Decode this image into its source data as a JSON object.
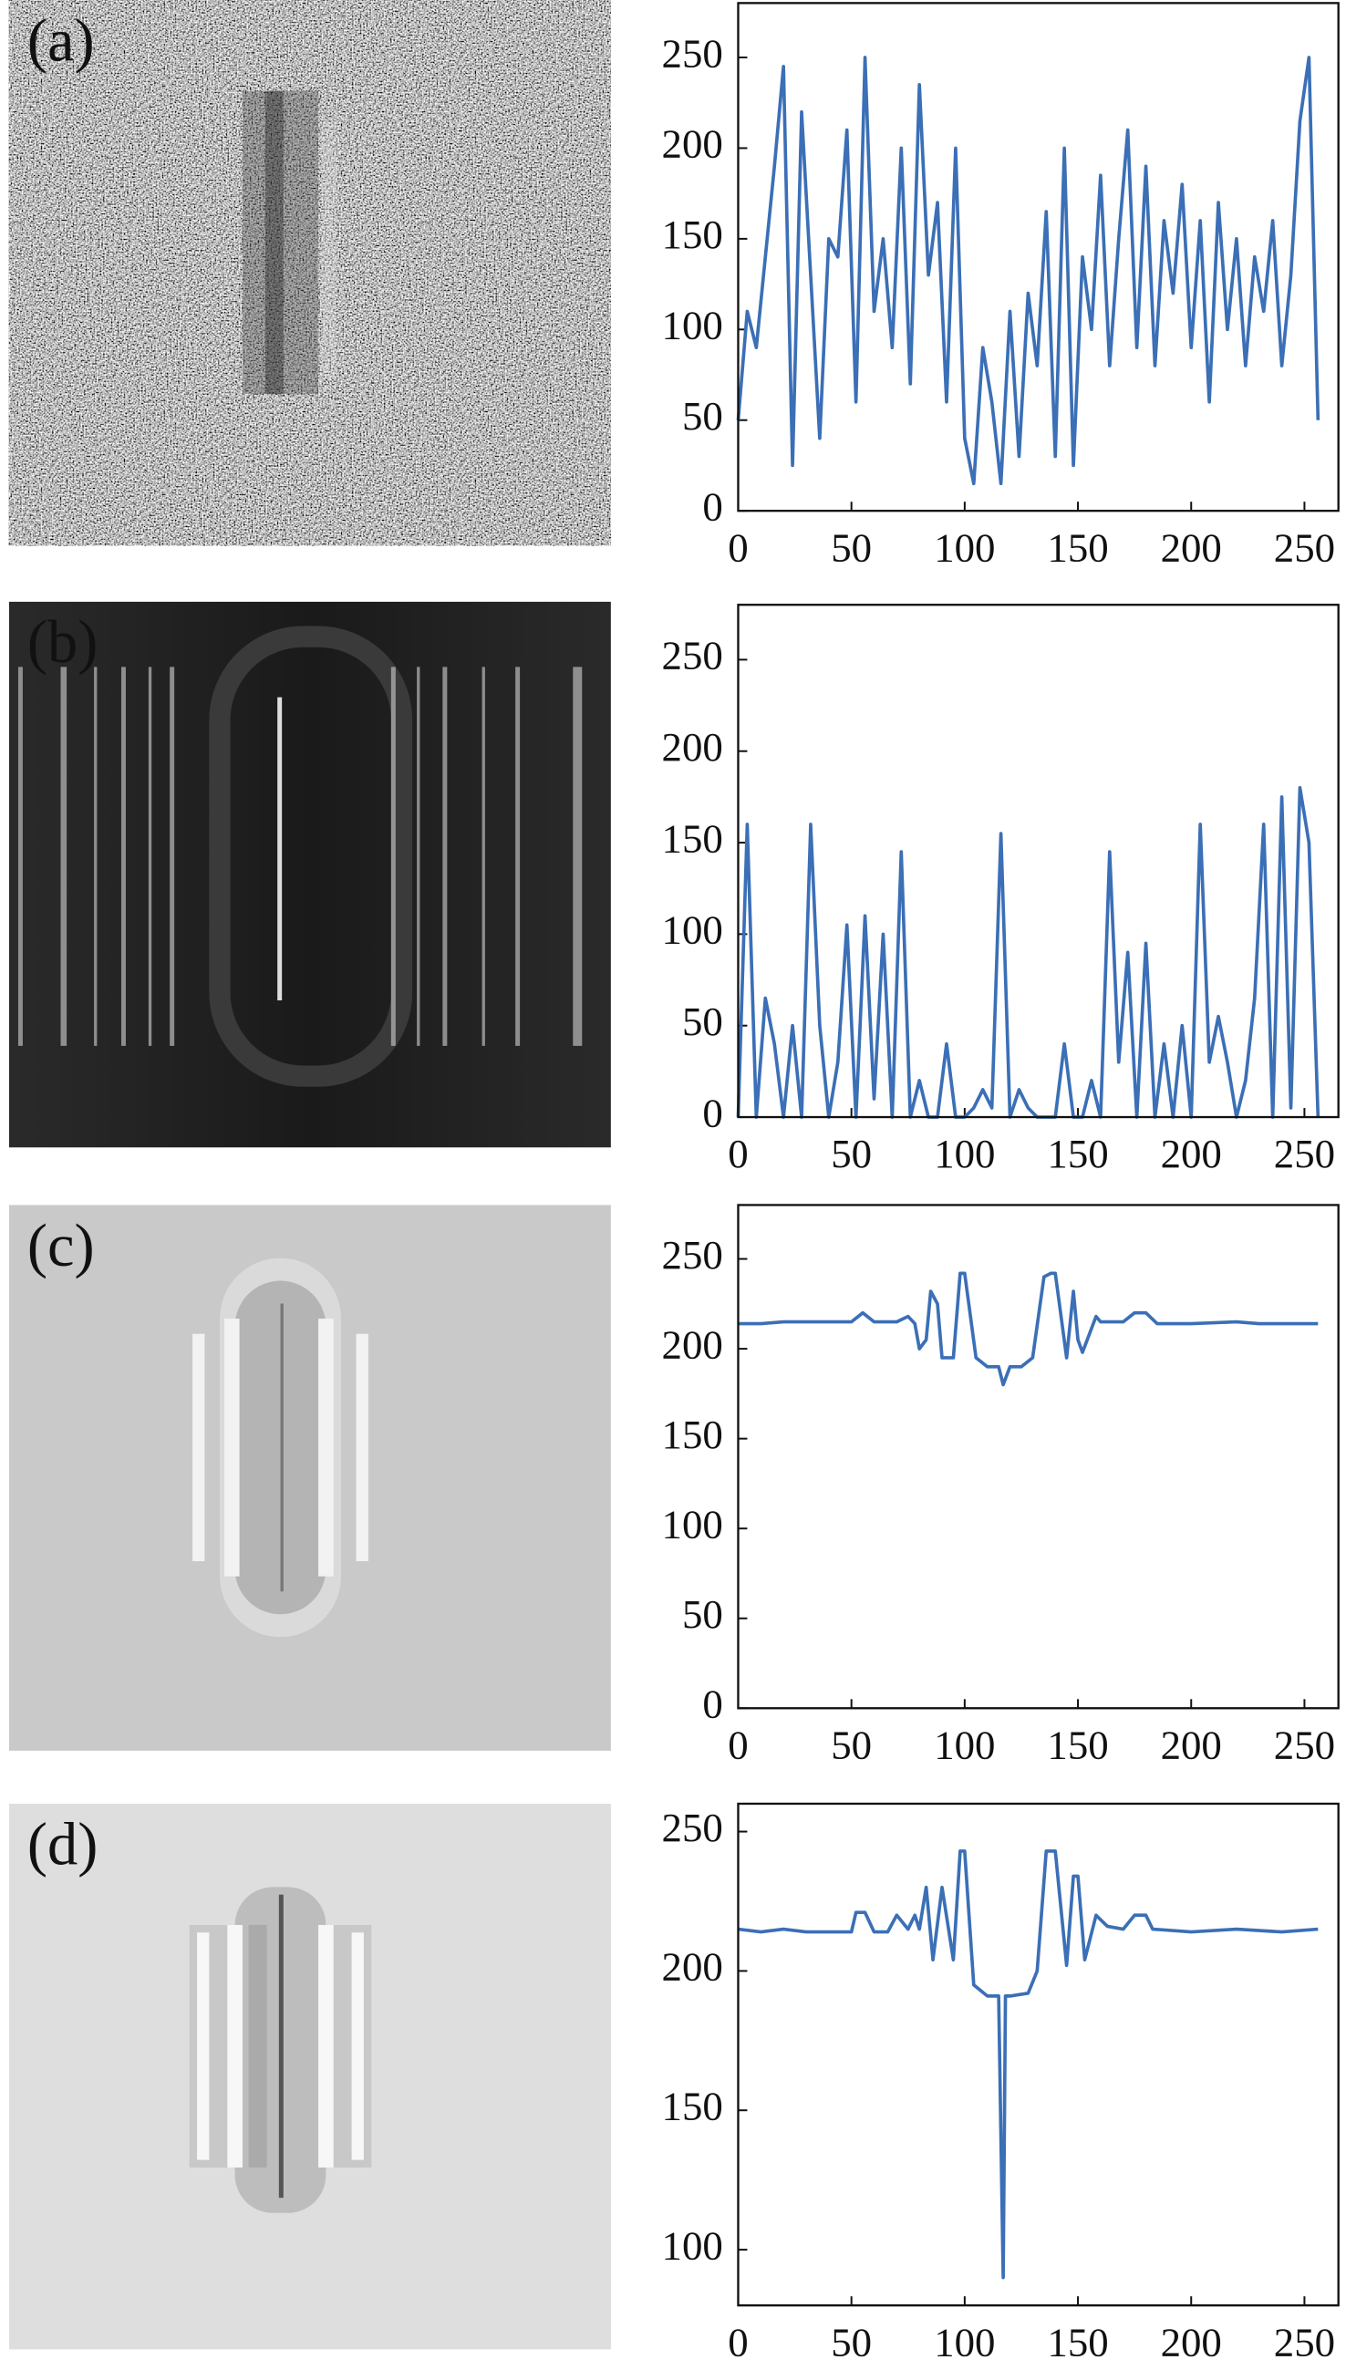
{
  "chart_data": [
    {
      "type": "line",
      "label": "(a)",
      "color": "#3b6fb6",
      "x": [
        0,
        4,
        8,
        12,
        16,
        20,
        24,
        28,
        32,
        36,
        40,
        44,
        48,
        52,
        56,
        60,
        64,
        68,
        72,
        76,
        80,
        84,
        88,
        92,
        96,
        100,
        104,
        108,
        112,
        116,
        120,
        124,
        128,
        132,
        136,
        140,
        144,
        148,
        152,
        156,
        160,
        164,
        168,
        172,
        176,
        180,
        184,
        188,
        192,
        196,
        200,
        204,
        208,
        212,
        216,
        220,
        224,
        228,
        232,
        236,
        240,
        244,
        248,
        252,
        256
      ],
      "values": [
        50,
        110,
        90,
        140,
        190,
        245,
        25,
        220,
        130,
        40,
        150,
        140,
        210,
        60,
        250,
        110,
        150,
        90,
        200,
        70,
        235,
        130,
        170,
        60,
        200,
        40,
        15,
        90,
        60,
        15,
        110,
        30,
        120,
        80,
        165,
        30,
        200,
        25,
        140,
        100,
        185,
        80,
        150,
        210,
        90,
        190,
        80,
        160,
        120,
        180,
        90,
        160,
        60,
        170,
        100,
        150,
        80,
        140,
        110,
        160,
        80,
        130,
        215,
        250,
        50
      ],
      "xlim": [
        0,
        265
      ],
      "xticks": [
        0,
        50,
        100,
        150,
        200,
        250
      ],
      "ylim": [
        0,
        280
      ],
      "yticks": [
        0,
        50,
        100,
        150,
        200,
        250
      ]
    },
    {
      "type": "line",
      "label": "(b)",
      "color": "#3b6fb6",
      "x": [
        0,
        4,
        8,
        12,
        16,
        20,
        24,
        28,
        32,
        36,
        40,
        44,
        48,
        52,
        56,
        60,
        64,
        68,
        72,
        76,
        80,
        84,
        88,
        92,
        96,
        100,
        104,
        108,
        112,
        116,
        120,
        124,
        128,
        132,
        136,
        140,
        144,
        148,
        152,
        156,
        160,
        164,
        168,
        172,
        176,
        180,
        184,
        188,
        192,
        196,
        200,
        204,
        208,
        212,
        216,
        220,
        224,
        228,
        232,
        236,
        240,
        244,
        248,
        252,
        256
      ],
      "values": [
        0,
        160,
        0,
        65,
        40,
        0,
        50,
        0,
        160,
        50,
        0,
        30,
        105,
        0,
        110,
        10,
        100,
        0,
        145,
        0,
        20,
        0,
        0,
        40,
        0,
        0,
        5,
        15,
        5,
        155,
        0,
        15,
        5,
        0,
        0,
        0,
        40,
        0,
        0,
        20,
        0,
        145,
        30,
        90,
        0,
        95,
        0,
        40,
        0,
        50,
        0,
        160,
        30,
        55,
        30,
        0,
        20,
        65,
        160,
        0,
        175,
        5,
        180,
        150,
        0
      ],
      "xlim": [
        0,
        265
      ],
      "xticks": [
        0,
        50,
        100,
        150,
        200,
        250
      ],
      "ylim": [
        0,
        280
      ],
      "yticks": [
        0,
        50,
        100,
        150,
        200,
        250
      ]
    },
    {
      "type": "line",
      "label": "(c)",
      "color": "#3b6fb6",
      "x": [
        0,
        10,
        20,
        30,
        50,
        55,
        60,
        70,
        75,
        78,
        80,
        83,
        85,
        88,
        90,
        95,
        98,
        100,
        105,
        110,
        115,
        117,
        120,
        125,
        130,
        135,
        138,
        140,
        145,
        148,
        150,
        152,
        158,
        160,
        170,
        175,
        180,
        185,
        200,
        220,
        230,
        240,
        256
      ],
      "values": [
        214,
        214,
        215,
        215,
        215,
        220,
        215,
        215,
        218,
        214,
        200,
        205,
        232,
        225,
        195,
        195,
        242,
        242,
        195,
        190,
        190,
        180,
        190,
        190,
        195,
        240,
        242,
        242,
        195,
        232,
        205,
        198,
        218,
        215,
        215,
        220,
        220,
        214,
        214,
        215,
        214,
        214,
        214
      ],
      "xlim": [
        0,
        265
      ],
      "xticks": [
        0,
        50,
        100,
        150,
        200,
        250
      ],
      "ylim": [
        0,
        280
      ],
      "yticks": [
        0,
        50,
        100,
        150,
        200,
        250
      ]
    },
    {
      "type": "line",
      "label": "(d)",
      "color": "#3b6fb6",
      "x": [
        0,
        10,
        20,
        30,
        50,
        52,
        56,
        60,
        66,
        70,
        75,
        78,
        80,
        83,
        86,
        90,
        95,
        98,
        100,
        104,
        110,
        115,
        117,
        118,
        120,
        128,
        132,
        136,
        140,
        145,
        148,
        150,
        153,
        158,
        163,
        170,
        175,
        180,
        183,
        200,
        220,
        240,
        256
      ],
      "values": [
        215,
        214,
        215,
        214,
        214,
        221,
        221,
        214,
        214,
        220,
        215,
        220,
        215,
        230,
        204,
        230,
        204,
        243,
        243,
        195,
        191,
        191,
        90,
        191,
        191,
        192,
        200,
        243,
        243,
        202,
        234,
        234,
        204,
        220,
        216,
        215,
        220,
        220,
        215,
        214,
        215,
        214,
        215
      ],
      "xlim": [
        0,
        265
      ],
      "xticks": [
        0,
        50,
        100,
        150,
        200,
        250
      ],
      "ylim": [
        80,
        260
      ],
      "yticks": [
        100,
        150,
        200,
        250
      ]
    }
  ]
}
